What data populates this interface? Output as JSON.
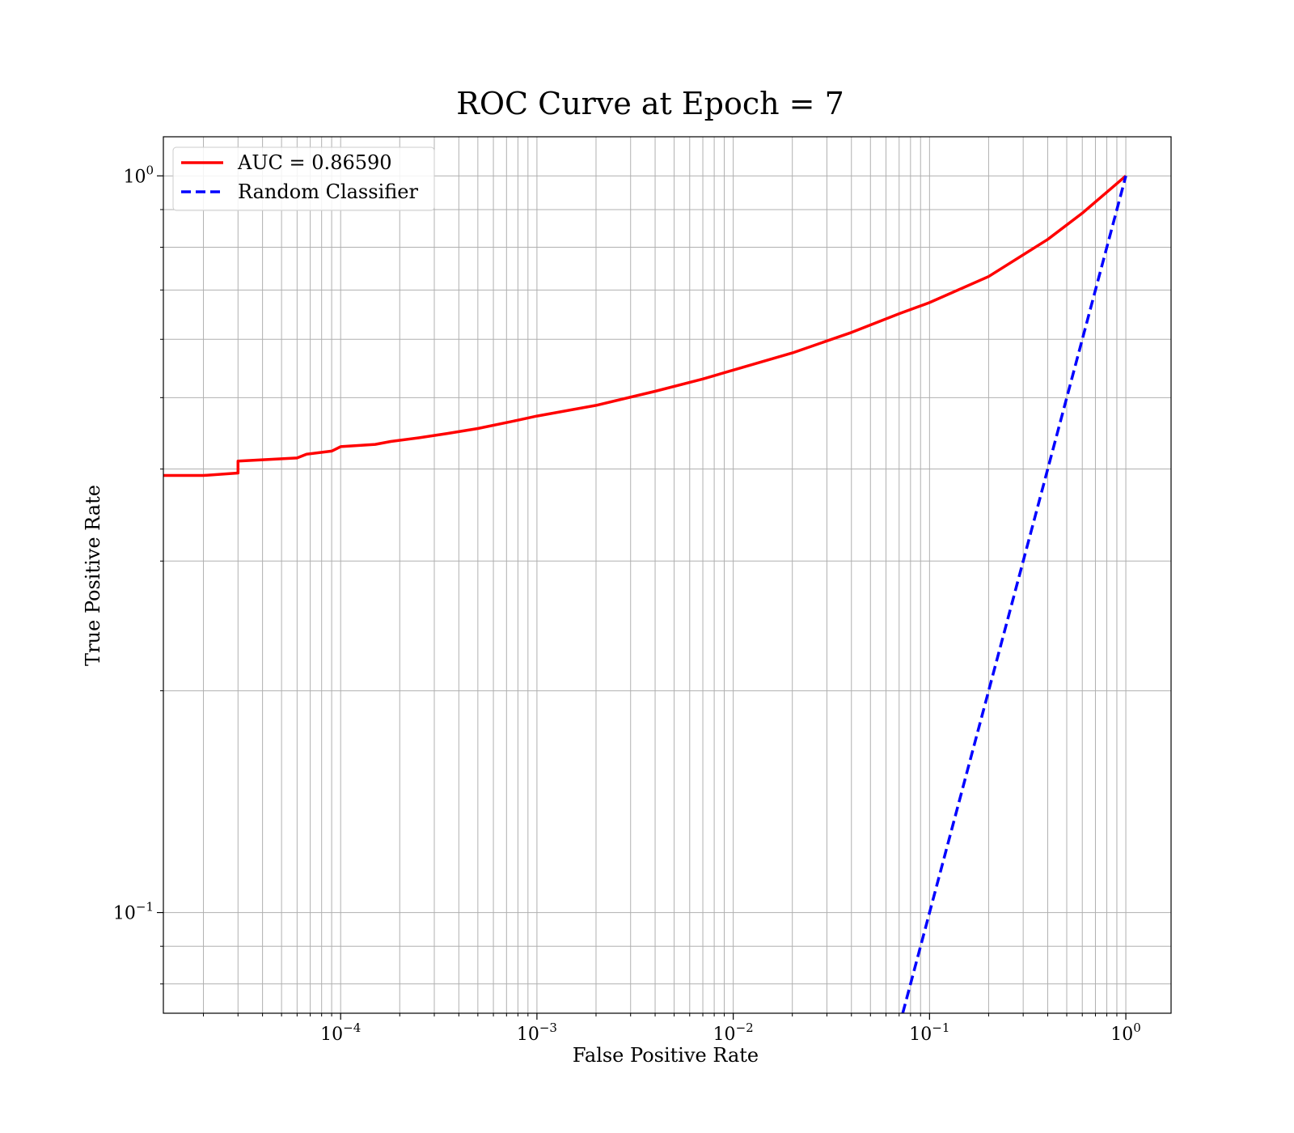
{
  "chart_data": {
    "type": "line",
    "title": "ROC Curve at Epoch = 7",
    "xlabel": "False Positive Rate",
    "ylabel": "True Positive Rate",
    "xscale": "log",
    "yscale": "log",
    "xlim": [
      1.25e-05,
      1.7
    ],
    "ylim": [
      0.073,
      1.13
    ],
    "grid": true,
    "legend_position": "top-left",
    "x_ticks": [
      {
        "value": 0.0001,
        "base": "10",
        "exp": "−4"
      },
      {
        "value": 0.001,
        "base": "10",
        "exp": "−3"
      },
      {
        "value": 0.01,
        "base": "10",
        "exp": "−2"
      },
      {
        "value": 0.1,
        "base": "10",
        "exp": "−1"
      },
      {
        "value": 1,
        "base": "10",
        "exp": "0"
      }
    ],
    "y_ticks": [
      {
        "value": 0.1,
        "base": "10",
        "exp": "−1"
      },
      {
        "value": 1,
        "base": "10",
        "exp": "0"
      }
    ],
    "series": [
      {
        "name": "AUC = 0.86590",
        "color": "#ff0000",
        "dash": "solid",
        "x": [
          1.25e-05,
          2e-05,
          3e-05,
          3e-05,
          6e-05,
          6.7e-05,
          9e-05,
          0.0001,
          0.00015,
          0.00018,
          0.00025,
          0.00035,
          0.0005,
          0.0008,
          0.001,
          0.002,
          0.004,
          0.007,
          0.01,
          0.02,
          0.04,
          0.07,
          0.1,
          0.2,
          0.4,
          0.6,
          1
        ],
        "y": [
          0.392,
          0.392,
          0.395,
          0.41,
          0.414,
          0.419,
          0.423,
          0.429,
          0.432,
          0.436,
          0.441,
          0.447,
          0.454,
          0.466,
          0.472,
          0.488,
          0.51,
          0.53,
          0.545,
          0.575,
          0.613,
          0.65,
          0.673,
          0.73,
          0.82,
          0.89,
          1.0
        ]
      },
      {
        "name": "Random Classifier",
        "color": "#0000ff",
        "dash": "dashed",
        "x": [
          0.073,
          1
        ],
        "y": [
          0.073,
          1
        ]
      }
    ]
  }
}
